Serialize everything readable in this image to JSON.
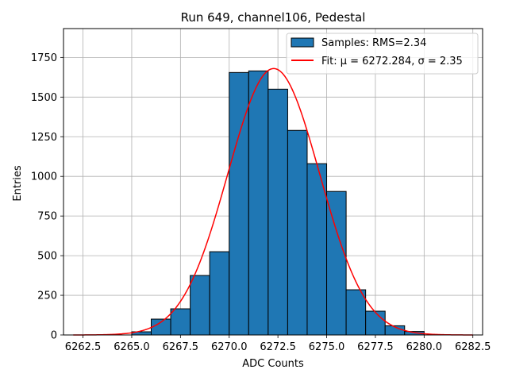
{
  "chart_data": {
    "type": "bar",
    "title": "Run 649, channel106, Pedestal",
    "xlabel": "ADC Counts",
    "ylabel": "Entries",
    "xlim": [
      6261.5,
      6283.0
    ],
    "ylim": [
      0,
      1932
    ],
    "grid": true,
    "legend_position": "top-right",
    "x_ticks": [
      "6262.5",
      "6265.0",
      "6267.5",
      "6270.0",
      "6272.5",
      "6275.0",
      "6277.5",
      "6280.0",
      "6282.5"
    ],
    "y_ticks": [
      "0",
      "250",
      "500",
      "750",
      "1000",
      "1250",
      "1500",
      "1750"
    ],
    "histogram": {
      "bin_edges": [
        6265,
        6266,
        6267,
        6268,
        6269,
        6270,
        6271,
        6272,
        6273,
        6274,
        6275,
        6276,
        6277,
        6278,
        6279,
        6280
      ],
      "counts": [
        20,
        100,
        165,
        375,
        525,
        1655,
        1665,
        1550,
        1290,
        1080,
        905,
        285,
        150,
        58,
        22
      ],
      "color": "#1f77b4",
      "edge_color": "#000000"
    },
    "series": [
      {
        "name": "Samples: RMS=2.34",
        "kind": "histogram",
        "color": "#1f77b4"
      },
      {
        "name": "Fit: μ = 6272.284, σ = 2.35",
        "kind": "gaussian",
        "color": "#ff0000",
        "mu": 6272.284,
        "sigma": 2.35,
        "amplitude": 1680,
        "x_range": [
          6262.0,
          6282.5
        ]
      }
    ]
  }
}
